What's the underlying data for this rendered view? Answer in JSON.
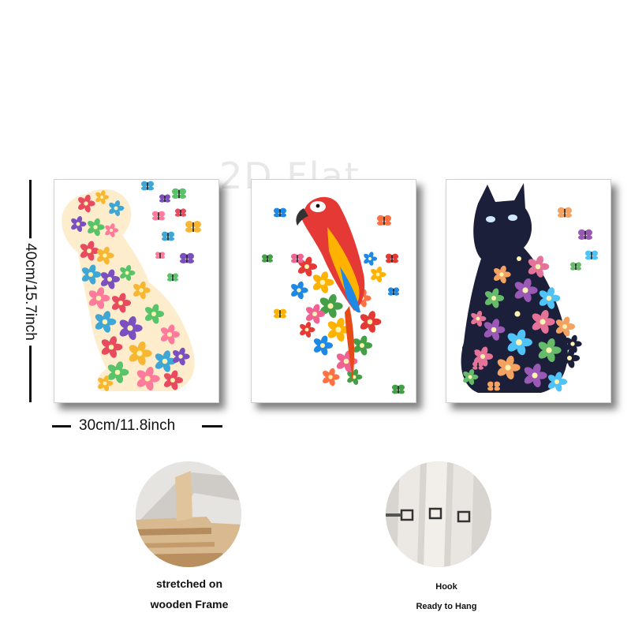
{
  "watermark": "2D Flat",
  "dimensions": {
    "height_label": "40cm/15.7inch",
    "width_label": "30cm/11.8inch"
  },
  "panels": [
    {
      "subject": "floral dog",
      "colors": [
        "#e84a5f",
        "#f7b733",
        "#3fa7d6",
        "#7b4fbf",
        "#59c36a",
        "#ff7b9c"
      ]
    },
    {
      "subject": "floral parrot",
      "colors": [
        "#e53935",
        "#ffb300",
        "#1e88e5",
        "#43a047",
        "#f06292",
        "#ff7043"
      ]
    },
    {
      "subject": "floral black cat",
      "colors": [
        "#1c1f3a",
        "#e57399",
        "#f4a261",
        "#9b59b6",
        "#4fc3f7",
        "#66bb6a"
      ]
    }
  ],
  "details": {
    "frame": {
      "line1": "stretched on",
      "line2": "wooden Frame"
    },
    "hook": {
      "line1": "Hook",
      "line2": "Ready to Hang"
    }
  }
}
